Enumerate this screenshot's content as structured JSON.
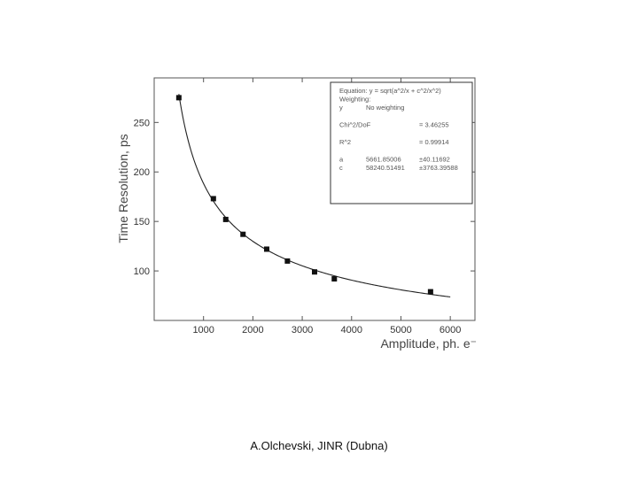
{
  "footer": "A.Olchevski, JINR (Dubna)",
  "chart_data": {
    "type": "scatter",
    "xlabel": "Amplitude, ph. e⁻",
    "ylabel": "Time Resolution, ps",
    "xlim": [
      0,
      6500
    ],
    "ylim": [
      50,
      295
    ],
    "xticks": [
      1000,
      2000,
      3000,
      4000,
      5000,
      6000
    ],
    "yticks": [
      100,
      150,
      200,
      250
    ],
    "grid": false,
    "series": [
      {
        "values_x": [
          500,
          1200,
          1450,
          1800,
          2280,
          2700,
          3250,
          3650,
          5600
        ],
        "values_y": [
          275,
          173,
          152,
          137,
          122,
          110,
          99,
          92,
          79
        ]
      }
    ],
    "fit": {
      "equation": "y = sqrt(a^2/x + c^2/x^2)",
      "a": 5661.85006,
      "c": 58240.51491,
      "x_range": [
        500,
        6000
      ]
    },
    "fit_box": {
      "lines": [
        {
          "left": "Equation: y = sqrt(a^2/x + c^2/x^2)",
          "right": ""
        },
        {
          "left": "Weighting:",
          "right": ""
        },
        {
          "left": "y",
          "mid": "No weighting",
          "right": ""
        },
        {
          "left": "",
          "right": ""
        },
        {
          "left": "Chi^2/DoF",
          "right": "= 3.46255"
        },
        {
          "left": "",
          "right": ""
        },
        {
          "left": "R^2",
          "right": "= 0.99914"
        },
        {
          "left": "",
          "right": ""
        },
        {
          "left": "a",
          "mid": "5661.85006",
          "right": "±40.11692"
        },
        {
          "left": "c",
          "mid": "58240.51491",
          "right": "±3763.39588"
        }
      ]
    }
  }
}
